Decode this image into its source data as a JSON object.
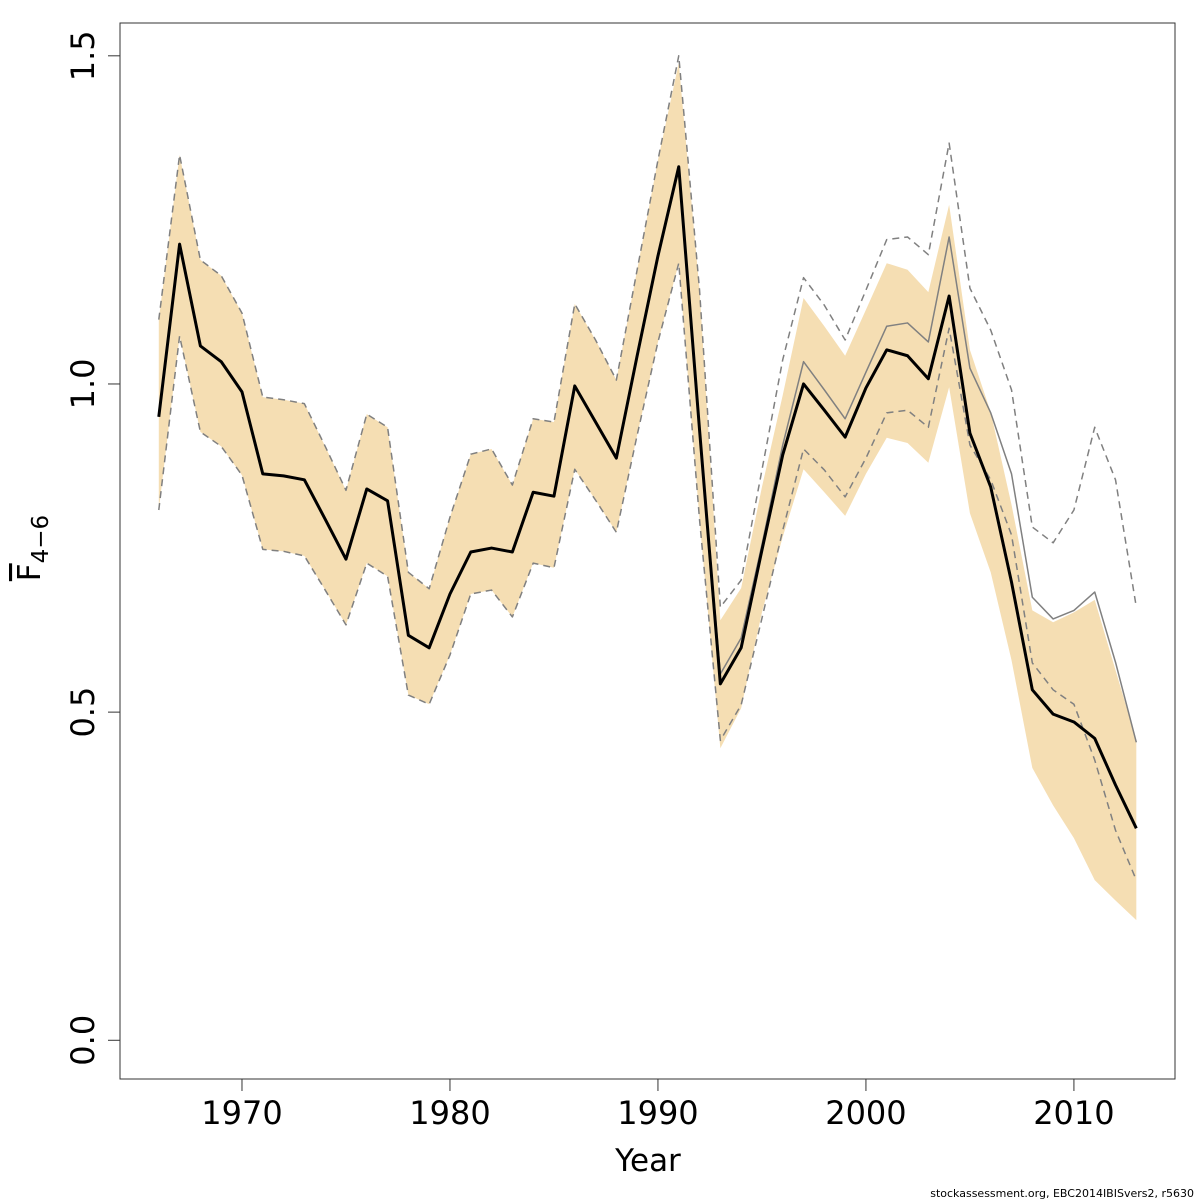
{
  "chart_data": {
    "type": "line",
    "xlabel": "Year",
    "ylabel": {
      "text": "F",
      "subscript": "4−6"
    },
    "footnote": "stockassessment.org, EBC2014IBISvers2, r5630",
    "x": [
      1966,
      1967,
      1968,
      1969,
      1970,
      1971,
      1972,
      1973,
      1974,
      1975,
      1976,
      1977,
      1978,
      1979,
      1980,
      1981,
      1982,
      1983,
      1984,
      1985,
      1986,
      1987,
      1988,
      1989,
      1990,
      1991,
      1992,
      1993,
      1994,
      1995,
      1996,
      1997,
      1998,
      1999,
      2000,
      2001,
      2002,
      2003,
      2004,
      2005,
      2006,
      2007,
      2008,
      2009,
      2010,
      2011,
      2012,
      2013
    ],
    "xlim": [
      1964.135,
      2014.86
    ],
    "xticks": [
      1970,
      1980,
      1990,
      2000,
      2010
    ],
    "ylim": [
      -0.059,
      1.55
    ],
    "yticks": [
      {
        "value": 0,
        "label": "0.0"
      },
      0.5,
      {
        "value": 1,
        "label": "1.0"
      },
      1.5
    ],
    "band": {
      "color": "#f5deb3",
      "upper": [
        1.098,
        1.349,
        1.189,
        1.165,
        1.108,
        0.98,
        0.976,
        0.97,
        0.905,
        0.838,
        0.954,
        0.934,
        0.713,
        0.688,
        0.797,
        0.893,
        0.901,
        0.846,
        0.947,
        0.942,
        1.122,
        1.067,
        1.006,
        1.174,
        1.341,
        1.489,
        1.143,
        0.64,
        0.689,
        0.843,
        0.983,
        1.131,
        1.088,
        1.043,
        1.113,
        1.184,
        1.174,
        1.14,
        1.273,
        1.052,
        0.957,
        0.816,
        0.655,
        0.637,
        0.652,
        0.671,
        0.564,
        0.457
      ],
      "lower": [
        0.808,
        1.073,
        0.927,
        0.905,
        0.861,
        0.748,
        0.745,
        0.738,
        0.686,
        0.633,
        0.727,
        0.707,
        0.526,
        0.512,
        0.587,
        0.68,
        0.686,
        0.645,
        0.727,
        0.72,
        0.87,
        0.823,
        0.774,
        0.922,
        1.064,
        1.184,
        0.793,
        0.445,
        0.506,
        0.652,
        0.767,
        0.87,
        0.835,
        0.799,
        0.863,
        0.918,
        0.91,
        0.88,
        0.995,
        0.803,
        0.713,
        0.579,
        0.415,
        0.358,
        0.308,
        0.244,
        0.213,
        0.183
      ]
    },
    "series": [
      {
        "color": "#808080",
        "style": "solid",
        "values": [
          0.95,
          1.213,
          1.058,
          1.034,
          0.988,
          0.863,
          0.86,
          0.854,
          0.794,
          0.733,
          0.84,
          0.822,
          0.617,
          0.598,
          0.68,
          0.744,
          0.75,
          0.744,
          0.835,
          0.829,
          0.997,
          0.942,
          0.887,
          1.043,
          1.195,
          1.331,
          0.93,
          0.558,
          0.613,
          0.755,
          0.907,
          1.034,
          0.991,
          0.947,
          1.018,
          1.088,
          1.093,
          1.064,
          1.224,
          1.024,
          0.956,
          0.863,
          0.675,
          0.642,
          0.655,
          0.683,
          0.576,
          0.454
        ]
      },
      {
        "color": "#808080",
        "style": "dashed",
        "values": [
          1.098,
          1.349,
          1.189,
          1.165,
          1.108,
          0.98,
          0.976,
          0.97,
          0.905,
          0.838,
          0.954,
          0.934,
          0.713,
          0.688,
          0.797,
          0.893,
          0.901,
          0.846,
          0.947,
          0.942,
          1.122,
          1.067,
          1.006,
          1.174,
          1.341,
          1.5,
          1.143,
          0.66,
          0.701,
          0.869,
          1.037,
          1.162,
          1.12,
          1.067,
          1.143,
          1.22,
          1.224,
          1.197,
          1.367,
          1.146,
          1.082,
          0.991,
          0.782,
          0.758,
          0.808,
          0.934,
          0.854,
          0.66
        ]
      },
      {
        "color": "#808080",
        "style": "dashed",
        "values": [
          0.808,
          1.073,
          0.927,
          0.905,
          0.861,
          0.748,
          0.745,
          0.738,
          0.686,
          0.633,
          0.727,
          0.707,
          0.526,
          0.512,
          0.587,
          0.68,
          0.686,
          0.645,
          0.727,
          0.72,
          0.87,
          0.823,
          0.774,
          0.922,
          1.064,
          1.184,
          0.793,
          0.457,
          0.511,
          0.643,
          0.777,
          0.901,
          0.869,
          0.828,
          0.887,
          0.956,
          0.96,
          0.934,
          1.085,
          0.907,
          0.854,
          0.77,
          0.575,
          0.534,
          0.512,
          0.427,
          0.32,
          0.244
        ]
      },
      {
        "color": "#000000",
        "style": "bold",
        "values": [
          0.95,
          1.213,
          1.058,
          1.034,
          0.988,
          0.863,
          0.86,
          0.854,
          0.794,
          0.733,
          0.84,
          0.822,
          0.617,
          0.598,
          0.68,
          0.744,
          0.75,
          0.744,
          0.835,
          0.829,
          0.997,
          0.942,
          0.887,
          1.043,
          1.195,
          1.331,
          0.93,
          0.543,
          0.598,
          0.747,
          0.892,
          1.0,
          0.96,
          0.919,
          0.994,
          1.052,
          1.043,
          1.008,
          1.134,
          0.925,
          0.843,
          0.698,
          0.534,
          0.497,
          0.485,
          0.46,
          0.389,
          0.323
        ]
      }
    ]
  }
}
